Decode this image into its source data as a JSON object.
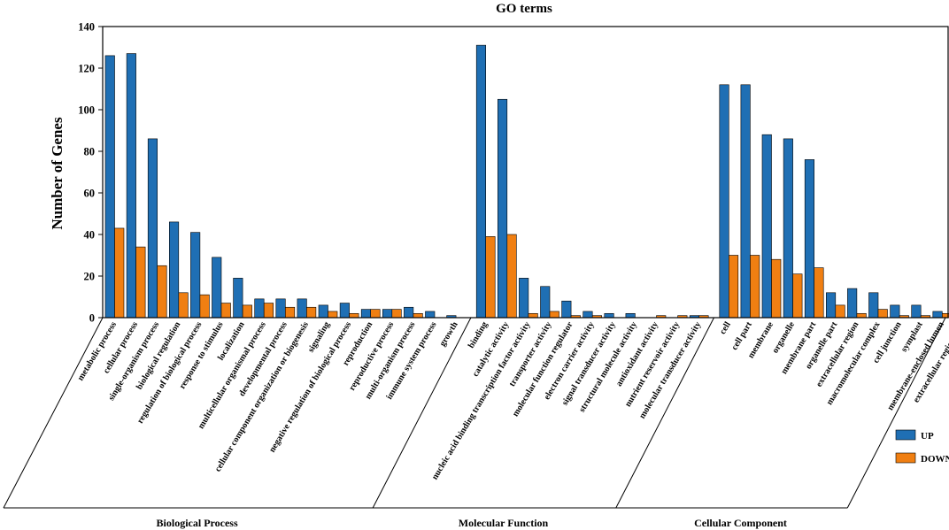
{
  "chart_data": {
    "type": "bar",
    "title": "GO terms",
    "ylabel": "Number of Genes",
    "xlabel": "",
    "ylim": [
      0,
      140
    ],
    "yticks": [
      0,
      20,
      40,
      60,
      80,
      100,
      120,
      140
    ],
    "grid": false,
    "legend_position": "right",
    "categories": [
      "metabolic process",
      "cellular process",
      "single-organism process",
      "biological regulation",
      "regulation of biological process",
      "response to stimulus",
      "localization",
      "multicellular organismal process",
      "developmental process",
      "cellular component organization or biogenesis",
      "signaling",
      "negative regulation of biological process",
      "reproduction",
      "reproductive process",
      "multi-organism process",
      "immune system process",
      "growth",
      "binding",
      "catalytic activity",
      "nucleic acid binding transcription factor activity",
      "transporter activity",
      "molecular function regulator",
      "electron carrier activity",
      "signal transducer activity",
      "structural molecule activity",
      "antioxidant activity",
      "nutrient reservoir activity",
      "molecular transducer activity",
      "cell",
      "cell part",
      "membrane",
      "organelle",
      "membrane part",
      "organelle part",
      "extracellular region",
      "macromolecular complex",
      "cell junction",
      "symplast",
      "membrane-enclosed lumen",
      "extracellular region part"
    ],
    "series": [
      {
        "name": "UP",
        "color": "#1f6fb4",
        "values": [
          126,
          127,
          86,
          46,
          41,
          29,
          19,
          9,
          9,
          9,
          6,
          7,
          4,
          4,
          5,
          3,
          1,
          131,
          105,
          19,
          15,
          8,
          3,
          2,
          2,
          0,
          0,
          1,
          112,
          112,
          88,
          86,
          76,
          12,
          14,
          12,
          6,
          6,
          3,
          2
        ]
      },
      {
        "name": "DOWN",
        "color": "#f07f12",
        "values": [
          43,
          34,
          25,
          12,
          11,
          7,
          6,
          7,
          5,
          5,
          3,
          2,
          4,
          4,
          2,
          0,
          0,
          39,
          40,
          2,
          3,
          1,
          1,
          0,
          0,
          1,
          1,
          1,
          30,
          30,
          28,
          21,
          24,
          6,
          2,
          4,
          1,
          1,
          2,
          0
        ]
      }
    ],
    "groups": [
      {
        "name": "Biological Process",
        "start": 0,
        "end": 16
      },
      {
        "name": "Molecular Function",
        "start": 17,
        "end": 27
      },
      {
        "name": "Cellular Component",
        "start": 28,
        "end": 39
      }
    ]
  }
}
